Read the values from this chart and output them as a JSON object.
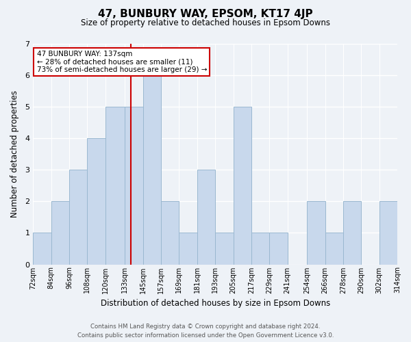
{
  "title": "47, BUNBURY WAY, EPSOM, KT17 4JP",
  "subtitle": "Size of property relative to detached houses in Epsom Downs",
  "xlabel": "Distribution of detached houses by size in Epsom Downs",
  "ylabel": "Number of detached properties",
  "bin_edges": [
    72,
    84,
    96,
    108,
    120,
    133,
    145,
    157,
    169,
    181,
    193,
    205,
    217,
    229,
    241,
    254,
    266,
    278,
    290,
    302,
    314
  ],
  "bin_labels": [
    "72sqm",
    "84sqm",
    "96sqm",
    "108sqm",
    "120sqm",
    "133sqm",
    "145sqm",
    "157sqm",
    "169sqm",
    "181sqm",
    "193sqm",
    "205sqm",
    "217sqm",
    "229sqm",
    "241sqm",
    "254sqm",
    "266sqm",
    "278sqm",
    "290sqm",
    "302sqm",
    "314sqm"
  ],
  "bar_values": [
    1,
    2,
    3,
    4,
    5,
    5,
    6,
    2,
    1,
    3,
    1,
    5,
    1,
    1,
    0,
    2,
    1,
    2,
    0,
    2
  ],
  "bar_color": "#c8d8ec",
  "bar_edge_color": "#9ab8d0",
  "property_value": 137,
  "marker_line_color": "#cc0000",
  "annotation_text": "47 BUNBURY WAY: 137sqm\n← 28% of detached houses are smaller (11)\n73% of semi-detached houses are larger (29) →",
  "annotation_box_color": "#ffffff",
  "annotation_box_edge": "#cc0000",
  "ylim": [
    0,
    7
  ],
  "yticks": [
    0,
    1,
    2,
    3,
    4,
    5,
    6,
    7
  ],
  "footer_line1": "Contains HM Land Registry data © Crown copyright and database right 2024.",
  "footer_line2": "Contains public sector information licensed under the Open Government Licence v3.0.",
  "bg_color": "#eef2f7",
  "plot_bg_color": "#eef2f7"
}
